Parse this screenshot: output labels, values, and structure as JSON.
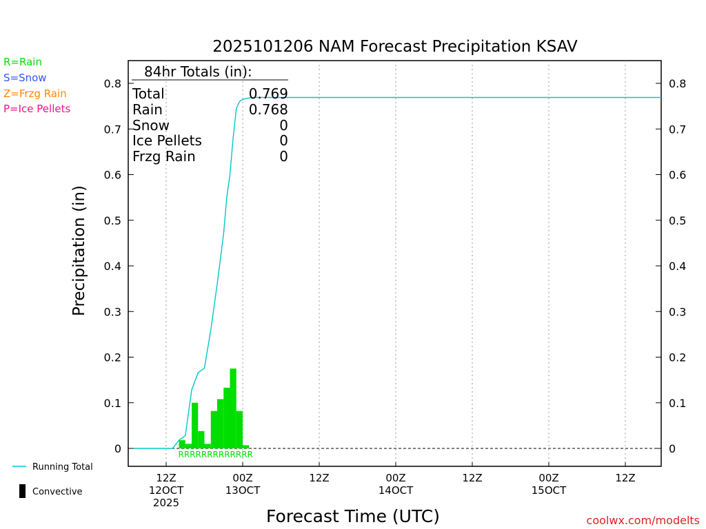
{
  "chart_data": {
    "type": "bar",
    "title": "2025101206 NAM Forecast Precipitation KSAV",
    "ylabel": "Precipitation (in)",
    "xlabel": "Forecast Time (UTC)",
    "ylim": [
      -0.04,
      0.85
    ],
    "yticks": [
      0,
      0.1,
      0.2,
      0.3,
      0.4,
      0.5,
      0.6,
      0.7,
      0.8
    ],
    "ytick_labels": [
      "0",
      "0.1",
      "0.2",
      "0.3",
      "0.4",
      "0.5",
      "0.6",
      "0.7",
      "0.8"
    ],
    "xlim_hours": [
      -3,
      84
    ],
    "xticks": [
      {
        "hour": 6,
        "line1": "12Z",
        "line2": "12OCT",
        "line3": "2025"
      },
      {
        "hour": 18,
        "line1": "00Z",
        "line2": "13OCT",
        "line3": ""
      },
      {
        "hour": 30,
        "line1": "12Z",
        "line2": "",
        "line3": ""
      },
      {
        "hour": 42,
        "line1": "00Z",
        "line2": "14OCT",
        "line3": ""
      },
      {
        "hour": 54,
        "line1": "12Z",
        "line2": "",
        "line3": ""
      },
      {
        "hour": 66,
        "line1": "00Z",
        "line2": "15OCT",
        "line3": ""
      },
      {
        "hour": 78,
        "line1": "12Z",
        "line2": "",
        "line3": ""
      }
    ],
    "hourly_precip": {
      "hours": [
        9,
        10,
        11,
        12,
        13,
        14,
        15,
        16,
        17,
        18,
        19
      ],
      "values": [
        0.018,
        0.01,
        0.1,
        0.038,
        0.01,
        0.082,
        0.108,
        0.133,
        0.175,
        0.082,
        0.007
      ],
      "type_codes": [
        "R",
        "R",
        "R",
        "R",
        "R",
        "R",
        "R",
        "R",
        "R",
        "R",
        "R"
      ],
      "color": "#00dd00"
    },
    "running_total": {
      "name": "Running Total",
      "color": "#00c8c8",
      "hours": [
        -2,
        5.5,
        7,
        8,
        9,
        10,
        11,
        12,
        13,
        14,
        15,
        15.5,
        16,
        16.5,
        17,
        17.5,
        18,
        19,
        20,
        84
      ],
      "values": [
        0,
        0,
        0,
        0.018,
        0.028,
        0.128,
        0.166,
        0.176,
        0.26,
        0.36,
        0.47,
        0.55,
        0.6,
        0.68,
        0.745,
        0.76,
        0.765,
        0.768,
        0.769,
        0.769
      ]
    },
    "precip_type_strip": "RRRRRRRRRRRRR",
    "totals_box": {
      "heading": "84hr Totals (in):",
      "rows": [
        {
          "label": "Total",
          "value": "0.769"
        },
        {
          "label": "Rain",
          "value": "0.768"
        },
        {
          "label": "Snow",
          "value": "0"
        },
        {
          "label": "Ice Pellets",
          "value": "0"
        },
        {
          "label": "Frzg Rain",
          "value": "0"
        }
      ]
    },
    "type_legend": [
      {
        "text": "R=Rain",
        "color": "#00dd00"
      },
      {
        "text": "S=Snow",
        "color": "#3355ff"
      },
      {
        "text": "Z=Frzg Rain",
        "color": "#ff8800"
      },
      {
        "text": "P=Ice Pellets",
        "color": "#ee1188"
      }
    ],
    "series_legend": [
      {
        "text": "Running Total",
        "kind": "line",
        "color": "#00c8c8"
      },
      {
        "text": "Convective",
        "kind": "bar",
        "color": "#000000"
      }
    ]
  },
  "credit": "coolwx.com/modelts"
}
